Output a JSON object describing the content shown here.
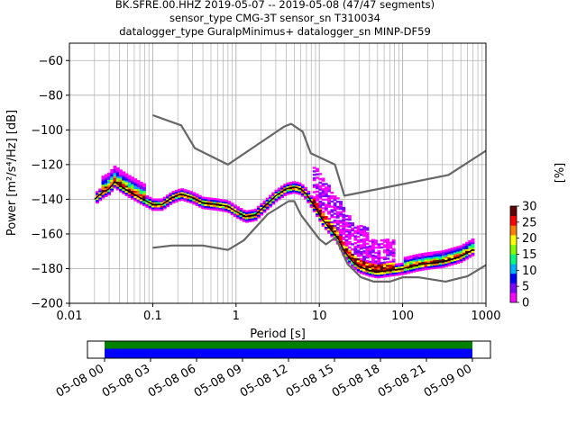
{
  "title": {
    "line1": "BK.SFRE.00.HHZ   2019-05-07 -- 2019-05-08  (47/47 segments)",
    "line2": "sensor_type CMG-3T sensor_sn T310034",
    "line3": "datalogger_type GuralpMinimus+ datalogger_sn MINP-DF59"
  },
  "chart_data": {
    "type": "heatmap",
    "xlabel": "Period [s]",
    "ylabel": "Power [m²/s⁴/Hz] [dB]",
    "xscale": "log",
    "xlim": [
      0.01,
      1000
    ],
    "ylim": [
      -200,
      -50
    ],
    "x_ticks": [
      {
        "value": 0.01,
        "label": "0.01"
      },
      {
        "value": 0.1,
        "label": "0.1"
      },
      {
        "value": 1,
        "label": "1"
      },
      {
        "value": 10,
        "label": "10"
      },
      {
        "value": 100,
        "label": "100"
      },
      {
        "value": 1000,
        "label": "1000"
      }
    ],
    "y_ticks": [
      {
        "value": -60,
        "label": "−60"
      },
      {
        "value": -80,
        "label": "−80"
      },
      {
        "value": -100,
        "label": "−100"
      },
      {
        "value": -120,
        "label": "−120"
      },
      {
        "value": -140,
        "label": "−140"
      },
      {
        "value": -160,
        "label": "−160"
      },
      {
        "value": -180,
        "label": "−180"
      },
      {
        "value": -200,
        "label": "−200"
      }
    ],
    "grid": true,
    "colorbar": {
      "label": "[%]",
      "range": [
        0,
        30
      ],
      "ticks": [
        {
          "value": 0,
          "label": "0"
        },
        {
          "value": 5,
          "label": "5"
        },
        {
          "value": 10,
          "label": "10"
        },
        {
          "value": 15,
          "label": "15"
        },
        {
          "value": 20,
          "label": "20"
        },
        {
          "value": 25,
          "label": "25"
        },
        {
          "value": 30,
          "label": "30"
        }
      ],
      "colors": [
        "#ffffff",
        "#ff00ff",
        "#8000ff",
        "#0000ff",
        "#00b0ff",
        "#00ff80",
        "#80ff00",
        "#ffff00",
        "#ff8000",
        "#ff0000",
        "#600000"
      ]
    },
    "mode_line": [
      [
        0.02,
        -140
      ],
      [
        0.025,
        -136
      ],
      [
        0.03,
        -134
      ],
      [
        0.035,
        -130
      ],
      [
        0.04,
        -132
      ],
      [
        0.05,
        -135
      ],
      [
        0.07,
        -139
      ],
      [
        0.1,
        -143
      ],
      [
        0.13,
        -143
      ],
      [
        0.17,
        -139
      ],
      [
        0.22,
        -137
      ],
      [
        0.3,
        -139
      ],
      [
        0.4,
        -142
      ],
      [
        0.6,
        -143
      ],
      [
        0.8,
        -144
      ],
      [
        1.0,
        -147
      ],
      [
        1.3,
        -150
      ],
      [
        1.7,
        -149
      ],
      [
        2.2,
        -144
      ],
      [
        3.0,
        -138
      ],
      [
        4.0,
        -134
      ],
      [
        5.0,
        -133
      ],
      [
        6.0,
        -134
      ],
      [
        7.0,
        -137
      ],
      [
        9.0,
        -145
      ],
      [
        11.0,
        -152
      ],
      [
        14.0,
        -158
      ],
      [
        17.0,
        -163
      ],
      [
        20.0,
        -170
      ],
      [
        25.0,
        -176
      ],
      [
        30.0,
        -179
      ],
      [
        40.0,
        -181
      ],
      [
        50.0,
        -182
      ],
      [
        70.0,
        -181
      ],
      [
        100.0,
        -180
      ],
      [
        150.0,
        -178
      ],
      [
        200.0,
        -177
      ],
      [
        300.0,
        -176
      ],
      [
        500.0,
        -173
      ],
      [
        700.0,
        -169
      ]
    ],
    "nhnm": [
      [
        0.1,
        -91.5
      ],
      [
        0.22,
        -97.4
      ],
      [
        0.32,
        -110.5
      ],
      [
        0.8,
        -120
      ],
      [
        3.8,
        -98
      ],
      [
        4.6,
        -96.5
      ],
      [
        6.3,
        -101
      ],
      [
        7.9,
        -113.5
      ],
      [
        15.4,
        -120
      ],
      [
        20.0,
        -138
      ],
      [
        354.8,
        -126
      ],
      [
        1000,
        -112
      ]
    ],
    "nlnm": [
      [
        0.1,
        -168
      ],
      [
        0.17,
        -166.7
      ],
      [
        0.4,
        -166.7
      ],
      [
        0.8,
        -169.2
      ],
      [
        1.24,
        -163.7
      ],
      [
        2.4,
        -148.6
      ],
      [
        4.3,
        -141.1
      ],
      [
        5.0,
        -141.1
      ],
      [
        6.0,
        -149
      ],
      [
        10.0,
        -163
      ],
      [
        12.0,
        -166
      ],
      [
        15.6,
        -162.1
      ],
      [
        21.9,
        -177.5
      ],
      [
        31.6,
        -185
      ],
      [
        45.0,
        -187.5
      ],
      [
        70.0,
        -187.5
      ],
      [
        101.0,
        -185
      ],
      [
        154.0,
        -185
      ],
      [
        328.0,
        -187.5
      ],
      [
        600.0,
        -184.4
      ],
      [
        1000,
        -178
      ]
    ],
    "timeline": {
      "ticks": [
        "05-08 00",
        "05-08 03",
        "05-08 06",
        "05-08 09",
        "05-08 12",
        "05-08 15",
        "05-08 18",
        "05-08 21",
        "05-09 00"
      ],
      "coverage_color": "#008000",
      "used_color": "#0000ff"
    }
  }
}
